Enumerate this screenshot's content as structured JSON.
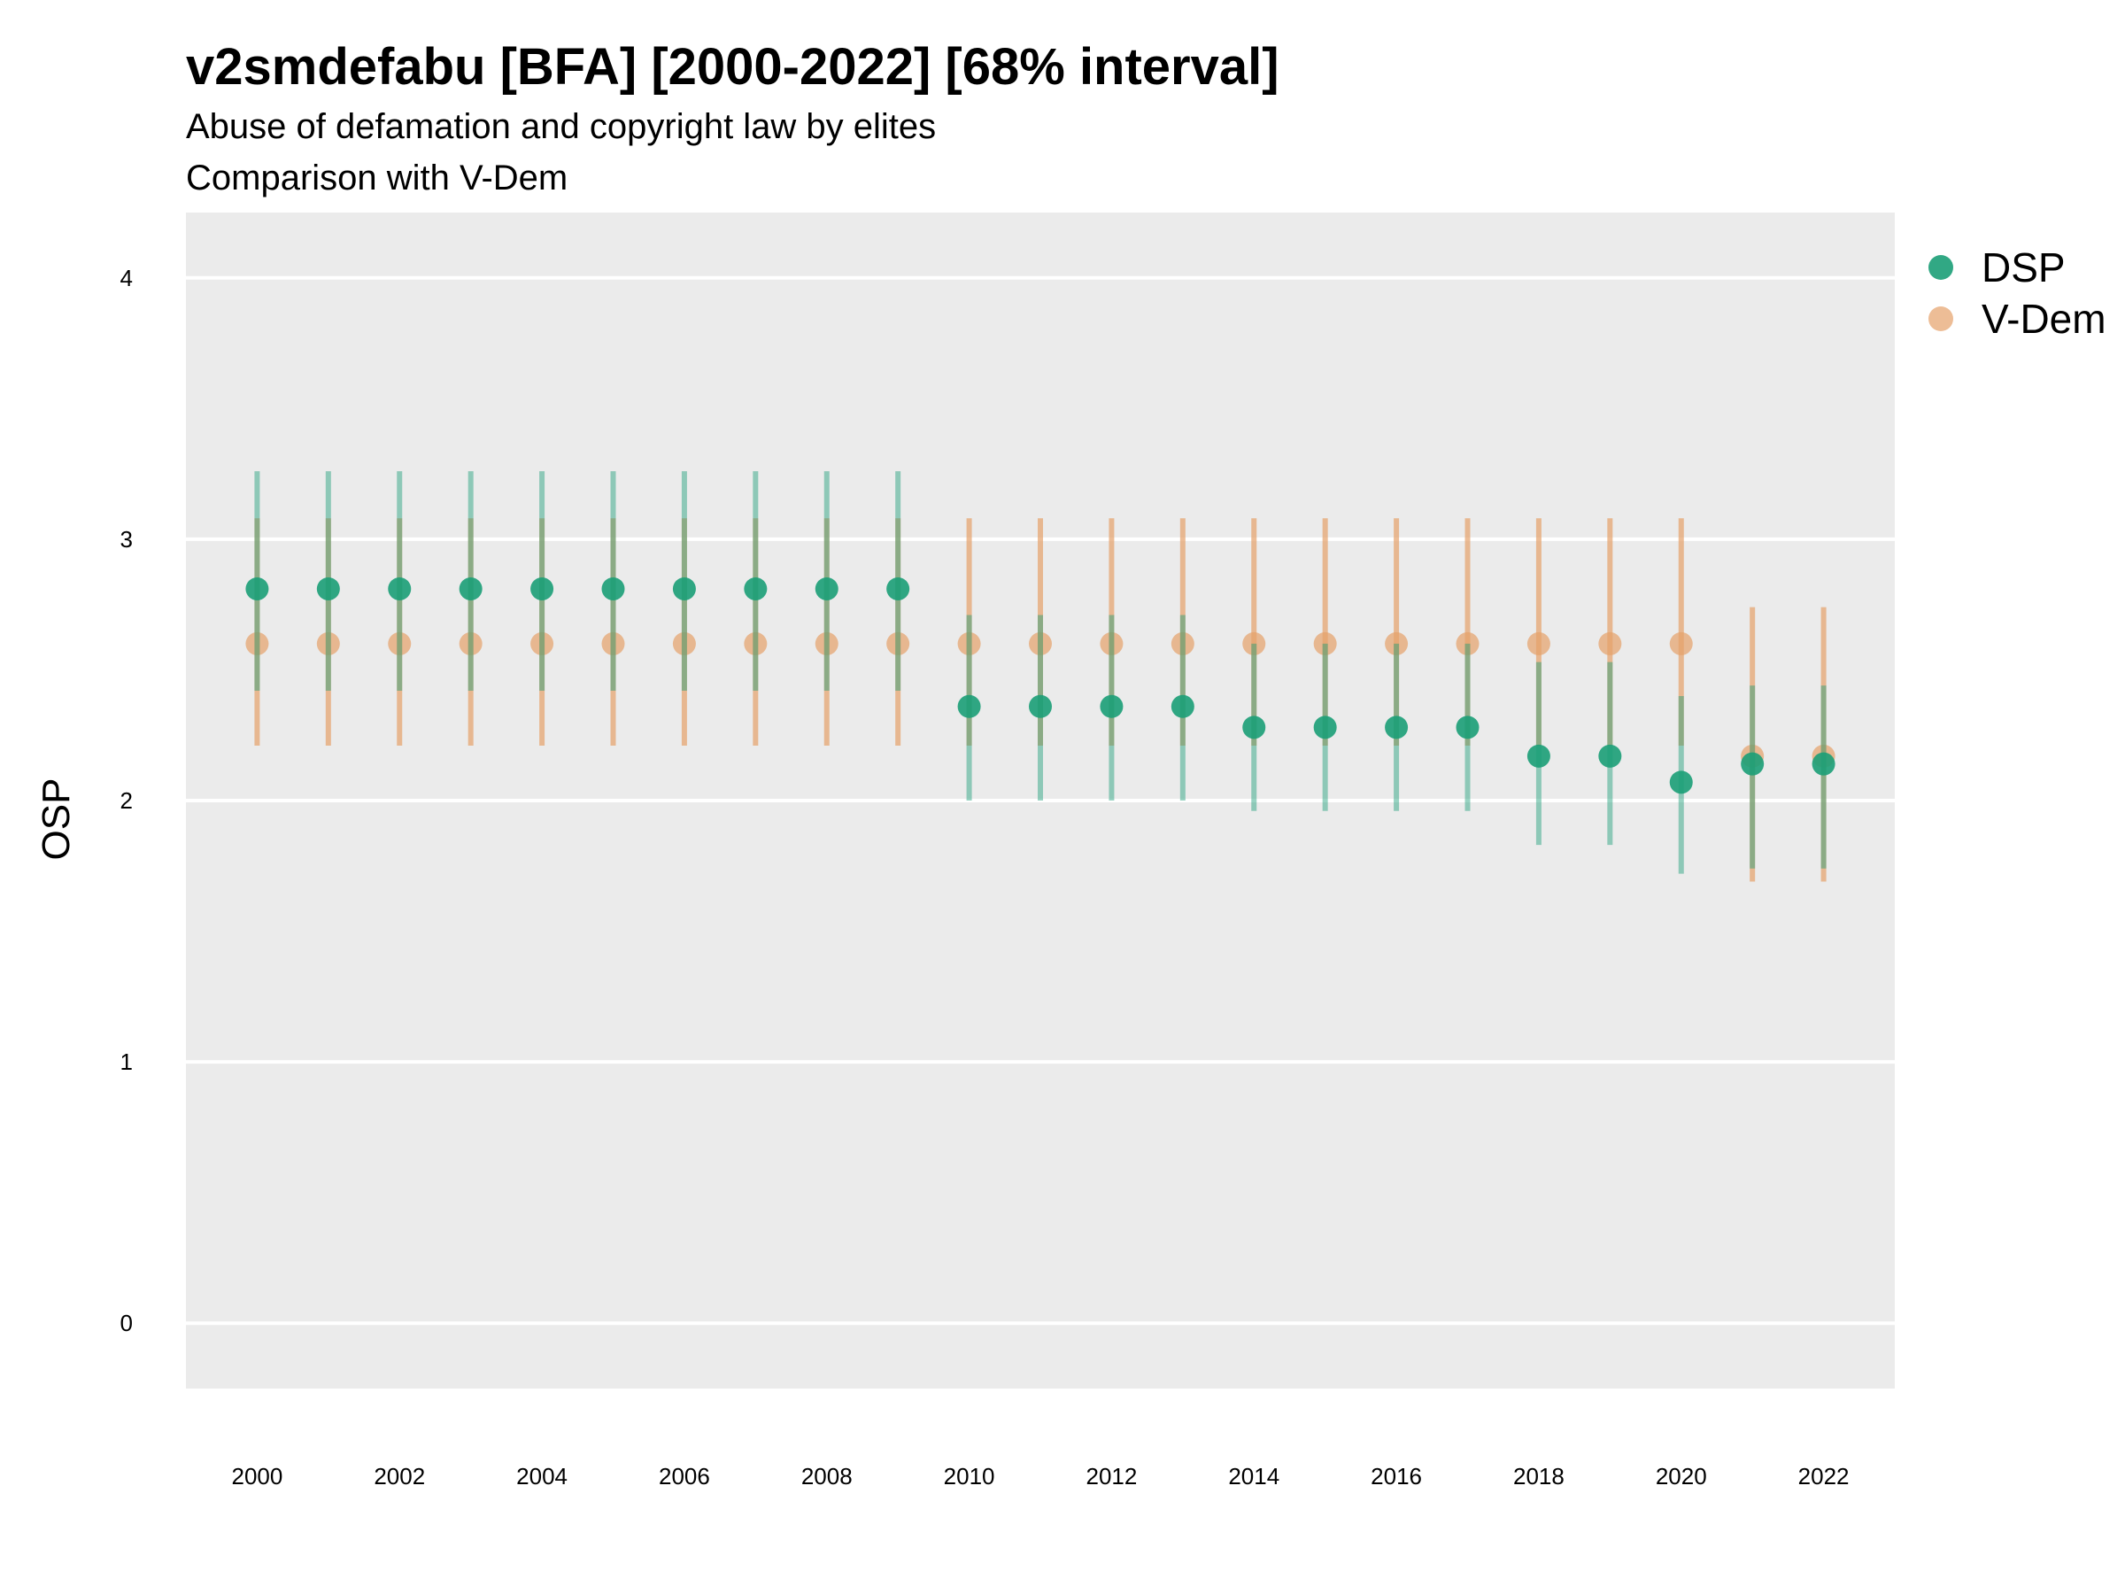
{
  "chart_data": {
    "type": "scatter",
    "title": "v2smdefabu [BFA] [2000-2022] [68% interval]",
    "subtitle": "Abuse of defamation and copyright law by elites",
    "subtitle2": "Comparison with V-Dem",
    "xlabel": "",
    "ylabel": "OSP",
    "xlim": [
      1999.0,
      2023.0
    ],
    "ylim": [
      -0.25,
      4.25
    ],
    "x_ticks": [
      2000,
      2002,
      2004,
      2006,
      2008,
      2010,
      2012,
      2014,
      2016,
      2018,
      2020,
      2022
    ],
    "y_ticks": [
      0,
      1,
      2,
      3,
      4
    ],
    "grid": true,
    "legend_position": "right",
    "x": [
      2000,
      2001,
      2002,
      2003,
      2004,
      2005,
      2006,
      2007,
      2008,
      2009,
      2010,
      2011,
      2012,
      2013,
      2014,
      2015,
      2016,
      2017,
      2018,
      2019,
      2020,
      2021,
      2022
    ],
    "series": [
      {
        "name": "DSP",
        "color": "#1b9e77",
        "values": [
          2.81,
          2.81,
          2.81,
          2.81,
          2.81,
          2.81,
          2.81,
          2.81,
          2.81,
          2.81,
          2.36,
          2.36,
          2.36,
          2.36,
          2.28,
          2.28,
          2.28,
          2.28,
          2.17,
          2.17,
          2.07,
          2.14,
          2.14
        ],
        "lower": [
          2.42,
          2.42,
          2.42,
          2.42,
          2.42,
          2.42,
          2.42,
          2.42,
          2.42,
          2.42,
          2.0,
          2.0,
          2.0,
          2.0,
          1.96,
          1.96,
          1.96,
          1.96,
          1.83,
          1.83,
          1.72,
          1.74,
          1.74
        ],
        "upper": [
          3.26,
          3.26,
          3.26,
          3.26,
          3.26,
          3.26,
          3.26,
          3.26,
          3.26,
          3.26,
          2.71,
          2.71,
          2.71,
          2.71,
          2.6,
          2.6,
          2.6,
          2.6,
          2.53,
          2.53,
          2.4,
          2.44,
          2.44
        ]
      },
      {
        "name": "V-Dem",
        "color": "#e6a16a",
        "values": [
          2.6,
          2.6,
          2.6,
          2.6,
          2.6,
          2.6,
          2.6,
          2.6,
          2.6,
          2.6,
          2.6,
          2.6,
          2.6,
          2.6,
          2.6,
          2.6,
          2.6,
          2.6,
          2.6,
          2.6,
          2.6,
          2.17,
          2.17
        ],
        "lower": [
          2.21,
          2.21,
          2.21,
          2.21,
          2.21,
          2.21,
          2.21,
          2.21,
          2.21,
          2.21,
          2.21,
          2.21,
          2.21,
          2.21,
          2.21,
          2.21,
          2.21,
          2.21,
          2.21,
          2.21,
          2.21,
          1.69,
          1.69
        ],
        "upper": [
          3.08,
          3.08,
          3.08,
          3.08,
          3.08,
          3.08,
          3.08,
          3.08,
          3.08,
          3.08,
          3.08,
          3.08,
          3.08,
          3.08,
          3.08,
          3.08,
          3.08,
          3.08,
          3.08,
          3.08,
          3.08,
          2.74,
          2.74
        ]
      }
    ]
  }
}
